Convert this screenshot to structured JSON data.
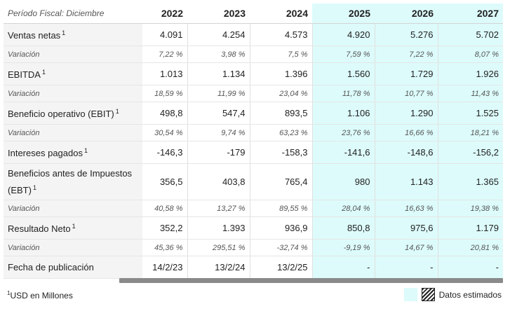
{
  "header": {
    "period_label": "Período Fiscal: Diciembre",
    "years": [
      "2022",
      "2023",
      "2024",
      "2025",
      "2026",
      "2027"
    ]
  },
  "rows": [
    {
      "type": "main",
      "label": "Ventas netas",
      "sup": "1",
      "values": [
        "4.091",
        "4.254",
        "4.573",
        "4.920",
        "5.276",
        "5.702"
      ]
    },
    {
      "type": "var",
      "label": "Variación",
      "values": [
        "7,22 %",
        "3,98 %",
        "7,5 %",
        "7,59 %",
        "7,22 %",
        "8,07 %"
      ]
    },
    {
      "type": "main",
      "label": "EBITDA",
      "sup": "1",
      "values": [
        "1.013",
        "1.134",
        "1.396",
        "1.560",
        "1.729",
        "1.926"
      ]
    },
    {
      "type": "var",
      "label": "Variación",
      "values": [
        "18,59 %",
        "11,99 %",
        "23,04 %",
        "11,78 %",
        "10,77 %",
        "11,43 %"
      ]
    },
    {
      "type": "main",
      "label": "Beneficio operativo (EBIT)",
      "sup": "1",
      "values": [
        "498,8",
        "547,4",
        "893,5",
        "1.106",
        "1.290",
        "1.525"
      ]
    },
    {
      "type": "var",
      "label": "Variación",
      "values": [
        "30,54 %",
        "9,74 %",
        "63,23 %",
        "23,76 %",
        "16,66 %",
        "18,21 %"
      ]
    },
    {
      "type": "main",
      "label": "Intereses pagados",
      "sup": "1",
      "values": [
        "-146,3",
        "-179",
        "-158,3",
        "-141,6",
        "-148,6",
        "-156,2"
      ]
    },
    {
      "type": "tall",
      "label": "Beneficios antes de Impuestos (EBT)",
      "sup": "1",
      "values": [
        "356,5",
        "403,8",
        "765,4",
        "980",
        "1.143",
        "1.365"
      ]
    },
    {
      "type": "var",
      "label": "Variación",
      "values": [
        "40,58 %",
        "13,27 %",
        "89,55 %",
        "28,04 %",
        "16,63 %",
        "19,38 %"
      ]
    },
    {
      "type": "main",
      "label": "Resultado Neto",
      "sup": "1",
      "values": [
        "352,2",
        "1.393",
        "936,9",
        "850,8",
        "975,6",
        "1.179"
      ]
    },
    {
      "type": "var",
      "label": "Variación",
      "values": [
        "45,36 %",
        "295,51 %",
        "-32,74 %",
        "-9,19 %",
        "14,67 %",
        "20,81 %"
      ]
    },
    {
      "type": "main",
      "label": "Fecha de publicación",
      "sup": "",
      "values": [
        "14/2/23",
        "13/2/24",
        "13/2/25",
        "-",
        "-",
        "-"
      ]
    }
  ],
  "estimated_from_index": 3,
  "footer": {
    "note_sup": "1",
    "note_text": "USD en Millones"
  },
  "legend": {
    "estimated_label": "Datos estimados"
  },
  "colors": {
    "estimated_bg": "#ddfbfb",
    "label_bg": "#f4f4f4",
    "scrollbar": "#8a8a8a"
  }
}
